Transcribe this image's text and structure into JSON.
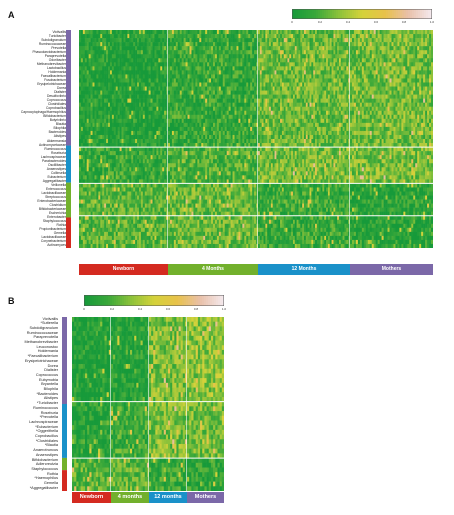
{
  "panelA": {
    "letter": "A",
    "rows": [
      "Victivallis",
      "Turicibacter",
      "Subdoligranulum",
      "Ruminococcaceae",
      "Prevotella",
      "Phascolarctobacterium",
      "Paraprevotella",
      "Odoribacter",
      "Methanobrevibacter",
      "Lactobacillus",
      "Holdemania",
      "Faecalibacterium",
      "Fusobacterium",
      "Erysipelotrichaceae",
      "Dorea",
      "Dialister",
      "Desulfovibrio",
      "Coprococcus",
      "Clostridiales",
      "Coprobacillus",
      "Capnocytophaga/Haemophilus",
      "Bifidobacterium",
      "Butyrivibrio",
      "Blautia",
      "Bilophila",
      "Bacteroides",
      "Alistipes",
      "Akkermansia",
      "Actinomycetaceae",
      "Ruminococcus",
      "Roseburia",
      "Lachnospiraceae",
      "Parabacteroides",
      "Oscillibacter",
      "Anaerostipes",
      "Collinsella",
      "Eubacterium",
      "Aggregatibacter",
      "Veillonella",
      "Enterococcus",
      "Lactobacillaceae",
      "Streptococcus",
      "Enterobacteriaceae",
      "Clostridium",
      "Bifidobacteriaceae",
      "Escherichia",
      "Enterobacter",
      "Staphylococcus",
      "Rothia",
      "Propionibacterium",
      "Gemella",
      "Lactobacillaceae",
      "Corynebacterium",
      "Actinomyces"
    ],
    "colorbar_ticks": [
      "0",
      "0.2",
      "0.4",
      "0.6",
      "0.8",
      "1.0"
    ],
    "groups": [
      "Newborn",
      "4 Months",
      "12 Months",
      "Mothers"
    ]
  },
  "panelB": {
    "letter": "B",
    "rows": [
      "Victivallis",
      "*Sutterella",
      "Subdoligranulum",
      "Ruminococcaceae",
      "Paraprevotella",
      "Methanobrevibacter",
      "Leuconostoc",
      "Holdemania",
      "*Faecalibacterium",
      "Erysipelotrichaceae",
      "Dorea",
      "Dialister",
      "Coprococcus",
      "Eubymobia",
      "Bryantella",
      "Bilophila",
      "*Bacteroides",
      "Alistipes",
      "*Turicibacter",
      "Ruminococcus",
      "Roseburia",
      "*Prevotella",
      "Lachnospiraceae",
      "*Eubacterium",
      "*Oggerithella",
      "Coprobacillus",
      "*Clostridiales",
      "*Blautia",
      "Anaerotruncus",
      "Anaerostipes",
      "Bifidobacterium",
      "Adlercreutzia",
      "Staphylococcus",
      "Rothia",
      "*Haemophilus",
      "Gemella",
      "*Aggregatibacter"
    ],
    "colorbar_ticks": [
      "0",
      "0.2",
      "0.4",
      "0.6",
      "0.8",
      "1.0"
    ],
    "groups": [
      "Newborn",
      "4 months",
      "12 months",
      "Mothers"
    ]
  },
  "colors": {
    "newborn": "#d42a20",
    "four_months": "#72b02c",
    "twelve_months": "#1a91c9",
    "mothers": "#7b68a8",
    "cmap": [
      "#179a3a",
      "#3aa83a",
      "#8cc23a",
      "#d4d23a",
      "#e8c24a",
      "#e9c0a8",
      "#f4e8ec"
    ]
  },
  "chart_data": [
    {
      "type": "heatmap",
      "title": "",
      "ylabel": "",
      "xlabel": "",
      "color_scale": [
        0,
        1
      ],
      "colorbar_ticks": [
        "0",
        "0.2",
        "0.4",
        "0.6",
        "0.8",
        "1.0"
      ],
      "column_groups": [
        "Newborn",
        "4 Months",
        "12 Months",
        "Mothers"
      ],
      "row_count": 54
    },
    {
      "type": "heatmap",
      "title": "",
      "ylabel": "",
      "xlabel": "",
      "color_scale": [
        0,
        1
      ],
      "colorbar_ticks": [
        "0",
        "0.2",
        "0.4",
        "0.6",
        "0.8",
        "1.0"
      ],
      "column_groups": [
        "Newborn",
        "4 months",
        "12 months",
        "Mothers"
      ],
      "row_count": 37
    }
  ]
}
